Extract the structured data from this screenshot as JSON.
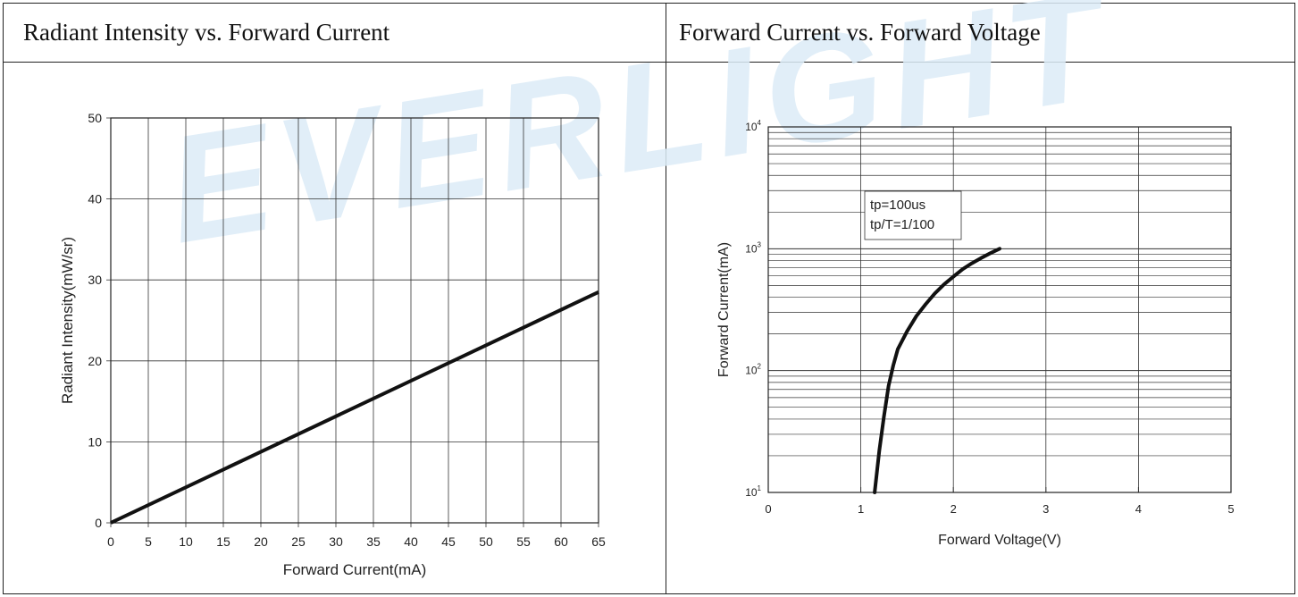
{
  "watermark": "EVERLIGHT",
  "panels": {
    "left_title": "Radiant Intensity vs. Forward Current",
    "right_title": "Forward Current vs. Forward Voltage"
  },
  "chart_data": [
    {
      "type": "line",
      "title": "Radiant Intensity vs. Forward Current",
      "xlabel": "Forward Current(mA)",
      "ylabel": "Radiant Intensity(mW/sr)",
      "xlim": [
        0,
        65
      ],
      "ylim": [
        0,
        50
      ],
      "xticks": [
        "0",
        "5",
        "10",
        "15",
        "20",
        "25",
        "30",
        "35",
        "40",
        "45",
        "50",
        "55",
        "60",
        "65"
      ],
      "yticks": [
        "0",
        "10",
        "20",
        "30",
        "40",
        "50"
      ],
      "grid": true,
      "series": [
        {
          "x": [
            0,
            65
          ],
          "y": [
            0,
            28.5
          ]
        }
      ]
    },
    {
      "type": "line",
      "title": "Forward Current vs. Forward Voltage",
      "xlabel": "Forward Voltage(V)",
      "ylabel": "Forward Current(mA)",
      "xlim": [
        0,
        5
      ],
      "ylim": [
        10,
        10000
      ],
      "yscale": "log",
      "xticks": [
        "0",
        "1",
        "2",
        "3",
        "4",
        "5"
      ],
      "yticks": [
        {
          "base": "10",
          "exp": "1"
        },
        {
          "base": "10",
          "exp": "2"
        },
        {
          "base": "10",
          "exp": "3"
        },
        {
          "base": "10",
          "exp": "4"
        }
      ],
      "grid": true,
      "annotations": [
        "tp=100us",
        "tp/T=1/100"
      ],
      "series": [
        {
          "x": [
            1.15,
            1.2,
            1.25,
            1.3,
            1.35,
            1.4,
            1.5,
            1.6,
            1.7,
            1.8,
            1.9,
            2.0,
            2.1,
            2.2,
            2.3,
            2.4,
            2.5
          ],
          "y": [
            10,
            22,
            42,
            75,
            110,
            150,
            210,
            280,
            350,
            430,
            510,
            590,
            680,
            760,
            840,
            920,
            1000
          ]
        }
      ]
    }
  ]
}
